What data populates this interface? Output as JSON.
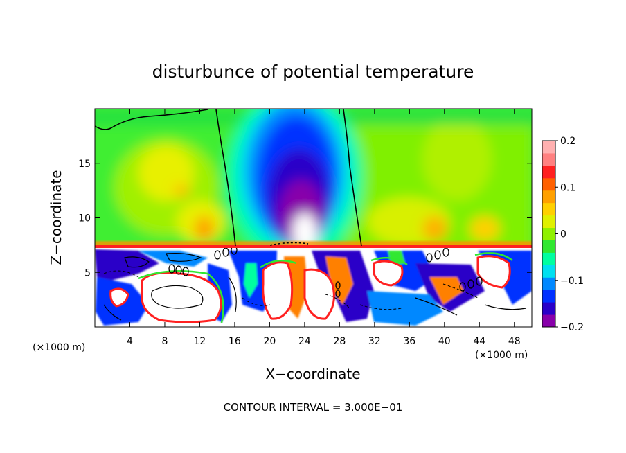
{
  "chart_data": {
    "type": "heatmap",
    "title": "disturbunce of potential temperature",
    "xlabel": "X−coordinate",
    "ylabel": "Z−coordinate",
    "x_unit_left": "(×1000 m)",
    "x_unit_right": "(×1000 m)",
    "footer": "CONTOUR INTERVAL = 3.000E−01",
    "xlim": [
      0,
      50
    ],
    "ylim": [
      0,
      20
    ],
    "x_ticks": [
      4,
      8,
      12,
      16,
      20,
      24,
      28,
      32,
      36,
      40,
      44,
      48
    ],
    "y_ticks": [
      5,
      10,
      15
    ],
    "colorbar": {
      "range": [
        -0.2,
        0.2
      ],
      "tick_values": [
        0.2,
        0.1,
        0,
        -0.1,
        -0.2
      ],
      "tick_labels": [
        "0.2",
        "0.1",
        "0",
        "−0.1",
        "−0.2"
      ],
      "colors": [
        "#8800aa",
        "#2a00c8",
        "#0030ff",
        "#0088ff",
        "#00e0f0",
        "#00ffa0",
        "#30e830",
        "#90f000",
        "#e0f000",
        "#ffd000",
        "#ffa000",
        "#ff6000",
        "#ff2020",
        "#ff8080",
        "#ffb0b0"
      ]
    }
  }
}
